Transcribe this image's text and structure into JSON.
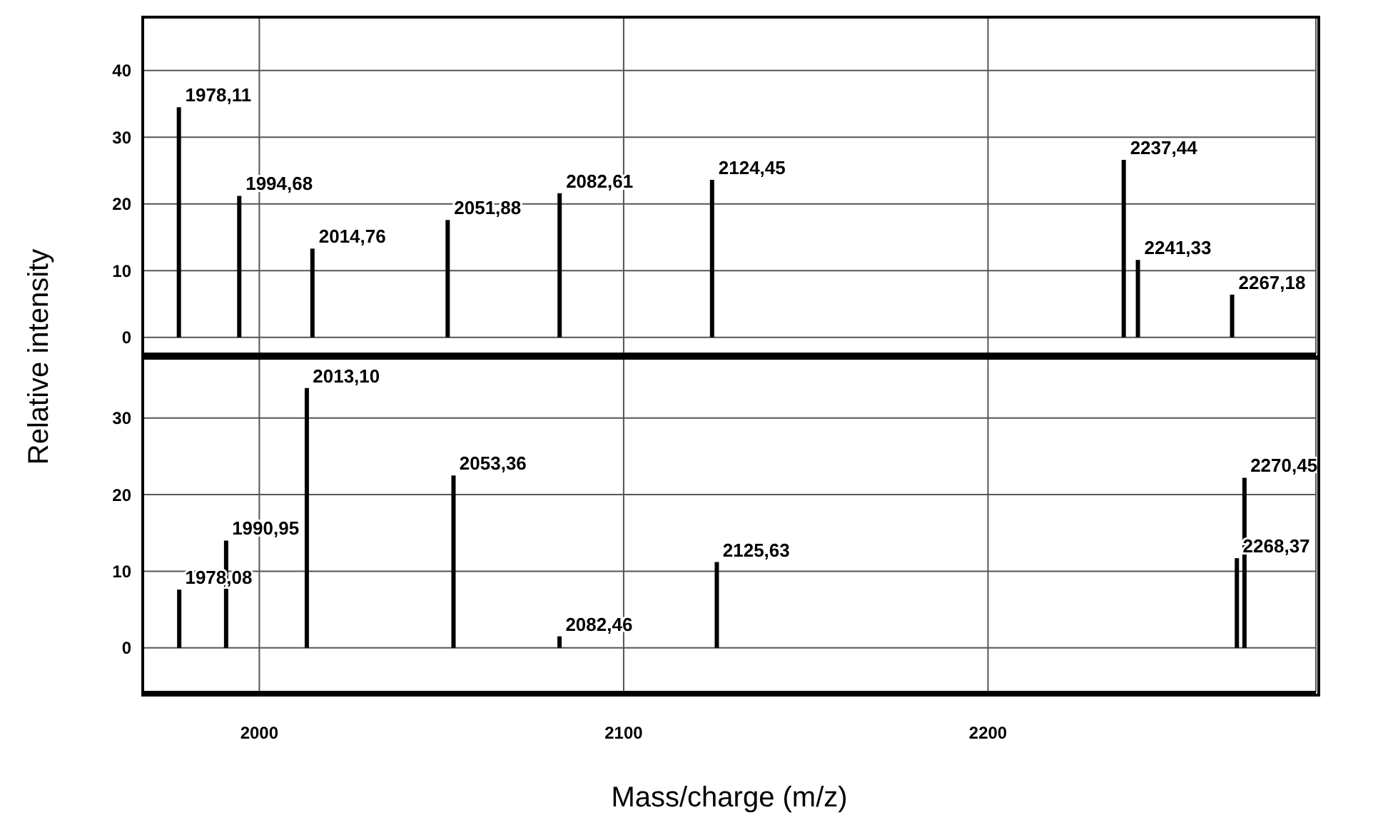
{
  "chart_data": [
    {
      "type": "bar",
      "ylabel": "Relative intensity",
      "x": [
        1978.11,
        1994.68,
        2014.76,
        2051.88,
        2082.61,
        2124.45,
        2237.44,
        2241.33,
        2267.18
      ],
      "values": [
        34.5,
        21.2,
        13.3,
        17.6,
        21.6,
        23.6,
        26.6,
        11.6,
        6.4
      ],
      "annotations": [
        {
          "text": "1978,11",
          "x": 1978.11,
          "y": 34.5
        },
        {
          "text": "1994,68",
          "x": 1994.68,
          "y": 21.2
        },
        {
          "text": "2014,76",
          "x": 2014.76,
          "y": 13.3
        },
        {
          "text": "2051,88",
          "x": 2051.88,
          "y": 17.6
        },
        {
          "text": "2082,61",
          "x": 2082.61,
          "y": 21.6
        },
        {
          "text": "2124,45",
          "x": 2124.45,
          "y": 23.6
        },
        {
          "text": "2237,44",
          "x": 2237.44,
          "y": 26.6
        },
        {
          "text": "2241,33",
          "x": 2241.33,
          "y": 11.6
        },
        {
          "text": "2267,18",
          "x": 2267.18,
          "y": 6.4
        }
      ],
      "color": "#000000",
      "xlim": [
        1968,
        2290
      ],
      "xticks": [
        2000,
        2100,
        2200
      ],
      "ylim": [
        -2.5,
        48
      ],
      "yticks": [
        0,
        10,
        20,
        30,
        40
      ],
      "grid": true,
      "tick_labels": "y"
    },
    {
      "type": "bar",
      "xlabel": "Mass/charge (m/z)",
      "x": [
        1978.08,
        1990.95,
        2013.1,
        2053.36,
        2082.46,
        2125.63,
        2268.37,
        2270.45
      ],
      "values": [
        7.6,
        14.0,
        33.9,
        22.5,
        1.5,
        11.2,
        11.7,
        22.2
      ],
      "annotations": [
        {
          "text": "1978,08",
          "x": 1978.08,
          "y": 7.6
        },
        {
          "text": "1990,95",
          "x": 1990.95,
          "y": 14.0
        },
        {
          "text": "2013,10",
          "x": 2013.1,
          "y": 33.9
        },
        {
          "text": "2053,36",
          "x": 2053.36,
          "y": 22.5
        },
        {
          "text": "2082,46",
          "x": 2082.46,
          "y": 1.5
        },
        {
          "text": "2125,63",
          "x": 2125.63,
          "y": 11.2
        },
        {
          "text": "2268,37",
          "x": 2268.37,
          "y": 11.7
        },
        {
          "text": "2270,45",
          "x": 2270.45,
          "y": 22.2
        }
      ],
      "color": "#000000",
      "xlim": [
        1968,
        2290
      ],
      "xticks": [
        2000,
        2100,
        2200
      ],
      "ylim": [
        -5.8,
        37.8
      ],
      "yticks": [
        0,
        10,
        20,
        30
      ],
      "grid": true
    }
  ]
}
